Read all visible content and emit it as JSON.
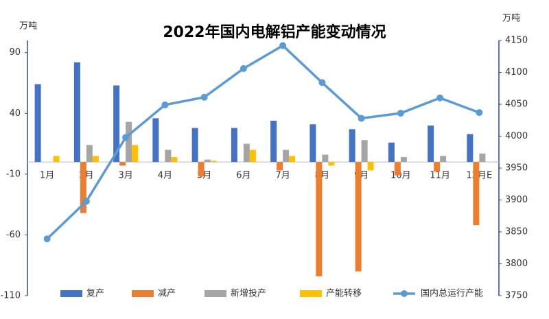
{
  "chart_data": {
    "type": "bar-line",
    "title": "2022年国内电解铝产能变动情况",
    "y_label": "万吨",
    "y2_label": "万吨",
    "categories": [
      "1月",
      "2月",
      "3月",
      "4月",
      "5月",
      "6月",
      "7月",
      "8月",
      "9月",
      "10月",
      "11月",
      "12月E"
    ],
    "series": [
      {
        "name": "复产",
        "type": "bar",
        "color": "#4472c4",
        "values": [
          64,
          82,
          63,
          36,
          28,
          28,
          34,
          31,
          27,
          16,
          30,
          23
        ]
      },
      {
        "name": "减产",
        "type": "bar",
        "color": "#ed7d31",
        "values": [
          0,
          -42,
          -3,
          0,
          -12,
          0,
          -7,
          -94,
          -90,
          -11,
          -8,
          -52
        ]
      },
      {
        "name": "新增投产",
        "type": "bar",
        "color": "#a5a5a5",
        "values": [
          0,
          14,
          33,
          10,
          2,
          15,
          10,
          6,
          18,
          4,
          5,
          7
        ]
      },
      {
        "name": "产能转移",
        "type": "bar",
        "color": "#ffc000",
        "values": [
          5,
          5,
          14,
          4,
          1,
          10,
          5,
          -3,
          -7,
          0,
          0,
          0
        ]
      },
      {
        "name": "国内总运行产能",
        "type": "line",
        "axis": "y2",
        "color": "#5b9bd5",
        "values": [
          3839,
          3898,
          3998,
          4049,
          4061,
          4106,
          4142,
          4084,
          4028,
          4036,
          4060,
          4037
        ]
      }
    ],
    "ylim": [
      -110,
      100
    ],
    "yticks": [
      -110,
      -60,
      -10,
      40,
      90
    ],
    "y2lim": [
      3750,
      4150
    ],
    "y2ticks": [
      3750,
      3800,
      3850,
      3900,
      3950,
      4000,
      4050,
      4100,
      4150
    ],
    "legend": "bottom"
  }
}
